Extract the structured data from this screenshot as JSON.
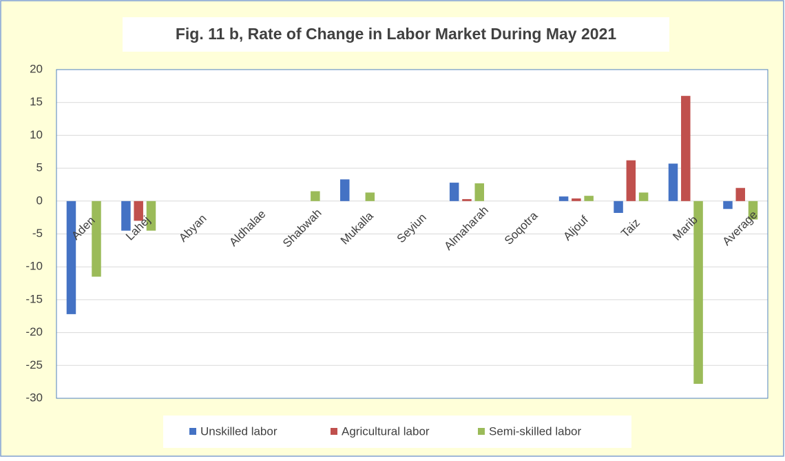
{
  "chart_data": {
    "type": "bar",
    "title": "Fig. 11 b, Rate of Change in Labor Market During May 2021",
    "categories": [
      "Aden",
      "Lahej",
      "Abyan",
      "Aldhalae",
      "Shabwah",
      "Mukalla",
      "Seyiun",
      "Almaharah",
      "Soqotra",
      "Aljouf",
      "Taiz",
      "Marib",
      "Average"
    ],
    "series": [
      {
        "name": "Unskilled labor",
        "color": "#4472c4",
        "values": [
          -17.2,
          -4.5,
          0,
          0,
          0,
          3.3,
          0,
          2.8,
          0,
          0.7,
          -1.8,
          5.7,
          -1.2
        ]
      },
      {
        "name": "Agricultural labor",
        "color": "#c0504d",
        "values": [
          0,
          -3,
          0,
          0,
          0,
          0,
          0,
          0.3,
          0,
          0.4,
          6.2,
          16,
          2
        ]
      },
      {
        "name": "Semi-skilled labor",
        "color": "#9bbb59",
        "values": [
          -11.5,
          -4.5,
          0,
          0,
          1.5,
          1.3,
          0,
          2.7,
          0,
          0.8,
          1.3,
          -27.8,
          -2.8
        ]
      }
    ],
    "ylim": [
      -30,
      20
    ],
    "yticks": [
      -30,
      -25,
      -20,
      -15,
      -10,
      -5,
      0,
      5,
      10,
      15,
      20
    ],
    "grid": true,
    "legend": "bottom"
  }
}
